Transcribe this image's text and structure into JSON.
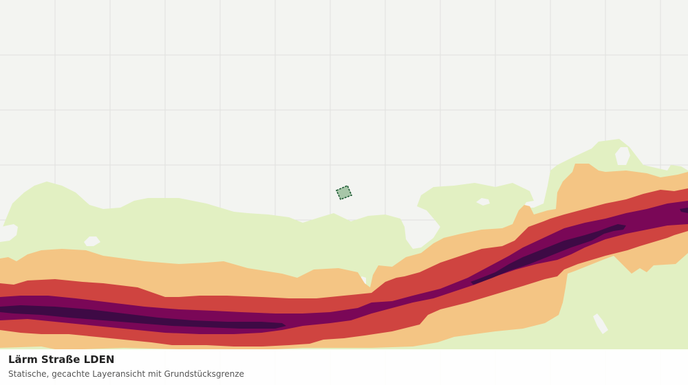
{
  "caption": {
    "title": "Lärm Straße LDEN",
    "subtitle": "Statische, gecachte Layeransicht mit Grundstücksgrenze"
  },
  "layers": {
    "noise_colors": {
      "lowest": "#e2f0c2",
      "low": "#f4c584",
      "medium": "#cf4440",
      "high": "#7a0757",
      "highest": "#3e0a45"
    },
    "parcel_fill": "#a7c6a8",
    "parcel_stroke": "#1d5a33",
    "background": "#f3f4f1",
    "grid_color": "#e0e1de"
  }
}
